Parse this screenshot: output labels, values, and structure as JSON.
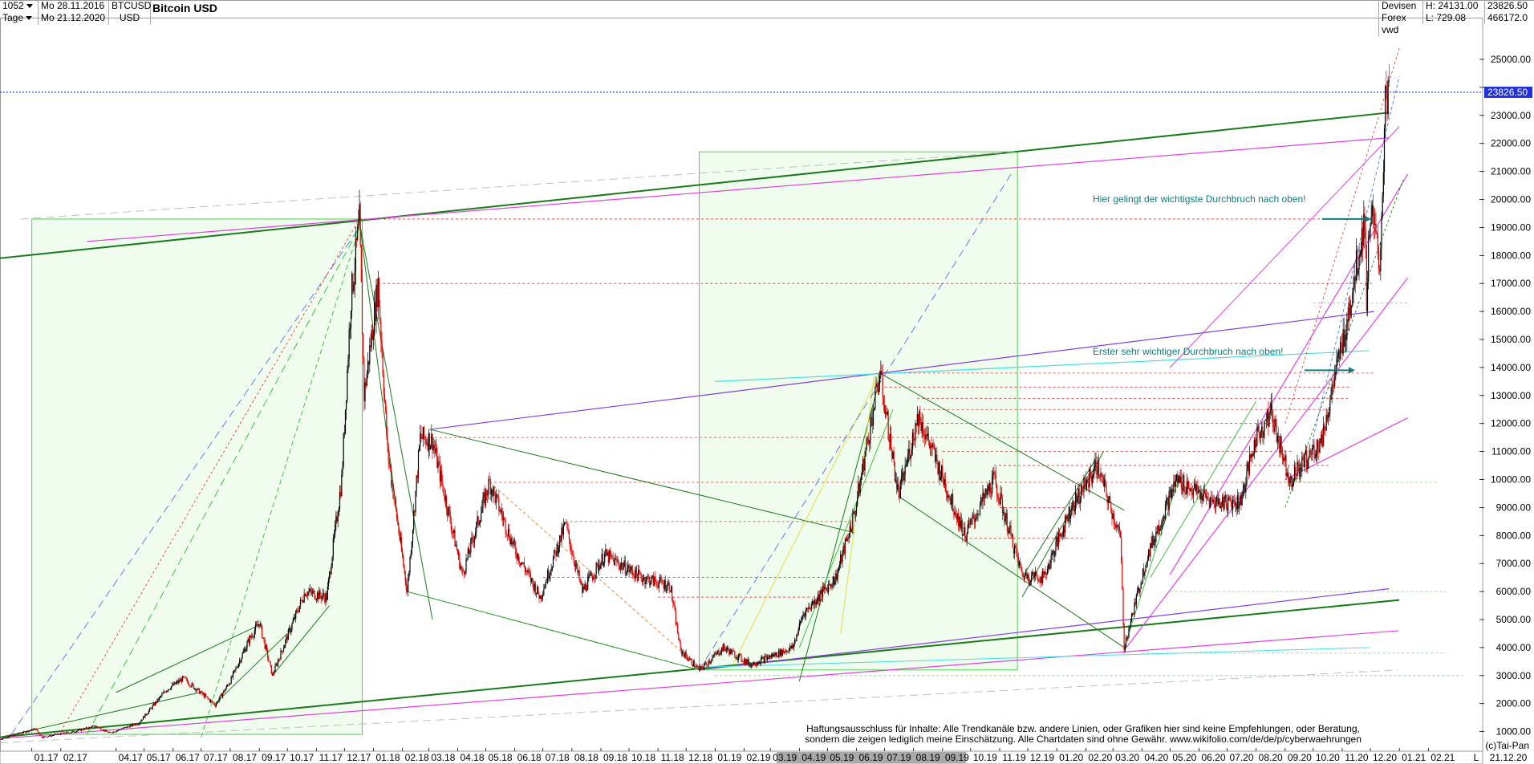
{
  "header": {
    "code": "1052",
    "period": "Tage",
    "date_from_label": "Mo 28.11.2016",
    "date_to_label": "Mo 21.12.2020",
    "symbol": "BTCUSD",
    "currency": "USD",
    "title": "Bitcoin USD",
    "market_line1": "Devisen",
    "market_line2": "Forex vwd",
    "high_label": "H: 24131.00",
    "low_label": "L: 729.08",
    "last_label": "23826.50",
    "volume_label": "466172.0"
  },
  "annotations": {
    "breakout_main": "Hier gelingt der wichtigste Durchbruch nach oben!",
    "breakout_first": "Erster sehr wichtiger Durchbruch nach oben!"
  },
  "footer": {
    "disclaimer_line1": "Haftungsausschluss für Inhalte: Alle Trendkanäle bzw. andere Linien, oder Grafiken hier sind keine Empfehlungen, oder Beratung,",
    "disclaimer_line2": "sondern die zeigen lediglich meine  Einschätzung. Alle Chartdaten sind ohne Gewähr.  www.wikifolio.com/de/de/p/cyberwaehrungen",
    "provider": "(c)Tai-Pan",
    "last_date": "21.12.20",
    "scale_mode": "L"
  },
  "colors": {
    "candle_up": "#000000",
    "candle_down": "#e00000",
    "main_trend": "#1a7a1a",
    "magenta": "#e040e0",
    "purple": "#8040e0",
    "cyan": "#40e0e0",
    "resistance_red": "#e03030",
    "box_green": "#a8eca0",
    "last_price": "#2030e0"
  },
  "chart_data": {
    "type": "candlestick",
    "title": "Bitcoin USD",
    "symbol": "BTCUSD",
    "xlabel": "",
    "ylabel": "",
    "ylim": [
      0,
      25500
    ],
    "x_range": [
      "2016-11-28",
      "2021-03-31"
    ],
    "grid": false,
    "last_price": 23826.5,
    "y_ticks": [
      1000,
      2000,
      3000,
      4000,
      5000,
      6000,
      7000,
      8000,
      9000,
      10000,
      11000,
      12000,
      13000,
      14000,
      15000,
      16000,
      17000,
      18000,
      19000,
      20000,
      21000,
      22000,
      23000,
      24000,
      25000
    ],
    "y_tick_labels": [
      "1000.00",
      "2000.00",
      "3000.00",
      "4000.00",
      "5000.00",
      "6000.00",
      "7000.00",
      "8000.00",
      "9000.00",
      "10000.00",
      "11000.00",
      "12000.00",
      "13000.00",
      "14000.00",
      "15000.00",
      "16000.00",
      "17000.00",
      "18000.00",
      "19000.00",
      "20000.00",
      "21000.00",
      "22000.00",
      "23000.00",
      "24000.00",
      "25000.00"
    ],
    "x_ticks": [
      "2017-01",
      "2017-02",
      "2017-04",
      "2017-05",
      "2017-06",
      "2017-07",
      "2017-08",
      "2017-09",
      "2017-10",
      "2017-11",
      "2017-12",
      "2018-01",
      "2018-02",
      "2018-03",
      "2018-04",
      "2018-05",
      "2018-06",
      "2018-07",
      "2018-08",
      "2018-09",
      "2018-10",
      "2018-11",
      "2018-12",
      "2019-01",
      "2019-02",
      "2019-03",
      "2019-04",
      "2019-05",
      "2019-06",
      "2019-07",
      "2019-08",
      "2019-09",
      "2019-10",
      "2019-11",
      "2019-12",
      "2020-01",
      "2020-02",
      "2020-03",
      "2020-04",
      "2020-05",
      "2020-06",
      "2020-07",
      "2020-08",
      "2020-09",
      "2020-10",
      "2020-11",
      "2020-12",
      "2021-01",
      "2021-02"
    ],
    "x_tick_labels": [
      "01.17",
      "02.17",
      "04.17",
      "05.17",
      "06.17",
      "07.17",
      "08.17",
      "09.17",
      "10.17",
      "11.17",
      "12.17",
      "01.18",
      "02.18",
      "03.18",
      "04.18",
      "05.18",
      "06.18",
      "07.18",
      "08.18",
      "09.18",
      "10.18",
      "11.18",
      "12.18",
      "01.19",
      "02.19",
      "03.19",
      "04.19",
      "05.19",
      "06.19",
      "07.19",
      "08.19",
      "09.19",
      "10.19",
      "11.19",
      "12.19",
      "01.20",
      "02.20",
      "03.20",
      "04.20",
      "05.20",
      "06.20",
      "07.20",
      "08.20",
      "09.20",
      "10.20",
      "11.20",
      "12.20",
      "01.21",
      "02.21"
    ],
    "price_path": [
      [
        "2016-11-28",
        730
      ],
      [
        "2017-01-05",
        1100
      ],
      [
        "2017-01-12",
        800
      ],
      [
        "2017-02-15",
        1000
      ],
      [
        "2017-03-10",
        1200
      ],
      [
        "2017-03-25",
        950
      ],
      [
        "2017-04-25",
        1300
      ],
      [
        "2017-05-25",
        2500
      ],
      [
        "2017-06-12",
        2900
      ],
      [
        "2017-07-16",
        1950
      ],
      [
        "2017-08-01",
        2800
      ],
      [
        "2017-08-20",
        4200
      ],
      [
        "2017-09-01",
        4900
      ],
      [
        "2017-09-15",
        3000
      ],
      [
        "2017-10-01",
        4400
      ],
      [
        "2017-10-20",
        6000
      ],
      [
        "2017-11-12",
        5800
      ],
      [
        "2017-11-28",
        10000
      ],
      [
        "2017-12-08",
        16500
      ],
      [
        "2017-12-17",
        19200
      ],
      [
        "2017-12-22",
        13000
      ],
      [
        "2018-01-06",
        17000
      ],
      [
        "2018-01-16",
        11000
      ],
      [
        "2018-02-06",
        6000
      ],
      [
        "2018-02-20",
        11500
      ],
      [
        "2018-03-05",
        11400
      ],
      [
        "2018-04-06",
        6600
      ],
      [
        "2018-05-05",
        9900
      ],
      [
        "2018-06-01",
        7500
      ],
      [
        "2018-06-28",
        5800
      ],
      [
        "2018-07-25",
        8400
      ],
      [
        "2018-08-12",
        6000
      ],
      [
        "2018-09-05",
        7300
      ],
      [
        "2018-10-15",
        6500
      ],
      [
        "2018-11-14",
        6200
      ],
      [
        "2018-11-25",
        3900
      ],
      [
        "2018-12-15",
        3200
      ],
      [
        "2019-01-10",
        4000
      ],
      [
        "2019-02-08",
        3400
      ],
      [
        "2019-03-25",
        4000
      ],
      [
        "2019-04-05",
        5200
      ],
      [
        "2019-05-10",
        6500
      ],
      [
        "2019-05-30",
        8800
      ],
      [
        "2019-06-26",
        13800
      ],
      [
        "2019-07-16",
        9400
      ],
      [
        "2019-08-06",
        12300
      ],
      [
        "2019-09-25",
        8000
      ],
      [
        "2019-10-26",
        10000
      ],
      [
        "2019-11-25",
        6600
      ],
      [
        "2019-12-18",
        6500
      ],
      [
        "2020-01-15",
        8900
      ],
      [
        "2020-02-13",
        10500
      ],
      [
        "2020-03-09",
        7900
      ],
      [
        "2020-03-13",
        4000
      ],
      [
        "2020-04-06",
        7200
      ],
      [
        "2020-05-08",
        10000
      ],
      [
        "2020-06-15",
        9200
      ],
      [
        "2020-07-15",
        9200
      ],
      [
        "2020-08-01",
        11500
      ],
      [
        "2020-08-17",
        12400
      ],
      [
        "2020-09-06",
        10000
      ],
      [
        "2020-10-10",
        11400
      ],
      [
        "2020-11-05",
        15500
      ],
      [
        "2020-11-25",
        19300
      ],
      [
        "2020-11-27",
        16500
      ],
      [
        "2020-12-01",
        19700
      ],
      [
        "2020-12-11",
        17600
      ],
      [
        "2020-12-17",
        23300
      ],
      [
        "2020-12-20",
        24100
      ],
      [
        "2020-12-21",
        23826.5
      ]
    ]
  }
}
